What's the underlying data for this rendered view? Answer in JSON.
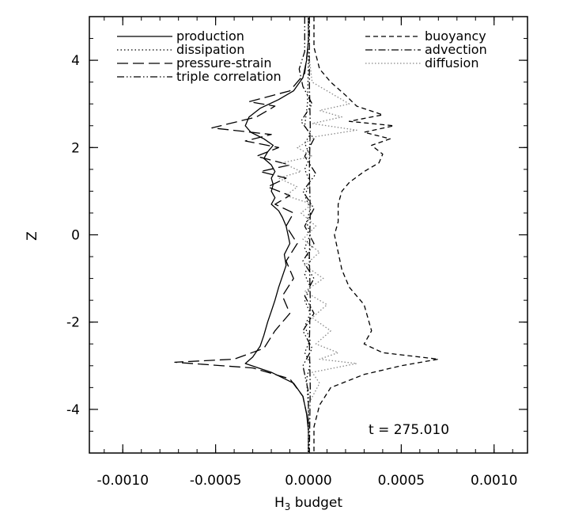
{
  "chart_data": {
    "type": "line",
    "title": "",
    "xlabel": "H",
    "xlabel_sub": "3",
    "xlabel_rest": " budget",
    "ylabel": "Z",
    "xlim": [
      -0.00118,
      0.00118
    ],
    "ylim": [
      -5,
      5
    ],
    "xticks": [
      -0.001,
      -0.0005,
      0.0,
      0.0005,
      0.001
    ],
    "xtick_labels": [
      "-0.0010",
      "-0.0005",
      "0.0000",
      "0.0005",
      "0.0010"
    ],
    "yticks": [
      -4,
      -2,
      0,
      2,
      4
    ],
    "ytick_labels": [
      "-4",
      "-2",
      "0",
      "2",
      "4"
    ],
    "grid": false,
    "legend_left": [
      "production",
      "dissipation",
      "pressure-strain",
      "triple correlation"
    ],
    "legend_right": [
      "buoyancy",
      "advection",
      "diffusion"
    ],
    "annotation": "t  =  275.010",
    "series": [
      {
        "name": "production",
        "style": "solid",
        "color": "#000000",
        "points": [
          [
            0,
            5
          ],
          [
            0,
            4.5
          ],
          [
            -1e-05,
            4.0
          ],
          [
            -3e-05,
            3.6
          ],
          [
            -8e-05,
            3.3
          ],
          [
            -0.00016,
            3.1
          ],
          [
            -0.00026,
            2.9
          ],
          [
            -0.00032,
            2.7
          ],
          [
            -0.00034,
            2.5
          ],
          [
            -0.00031,
            2.35
          ],
          [
            -0.00024,
            2.2
          ],
          [
            -0.00019,
            2.05
          ],
          [
            -0.00022,
            1.9
          ],
          [
            -0.00024,
            1.75
          ],
          [
            -0.0002,
            1.6
          ],
          [
            -0.00018,
            1.45
          ],
          [
            -0.0002,
            1.3
          ],
          [
            -0.00019,
            1.15
          ],
          [
            -0.0002,
            1.0
          ],
          [
            -0.00018,
            0.85
          ],
          [
            -0.0002,
            0.7
          ],
          [
            -0.00016,
            0.55
          ],
          [
            -0.00014,
            0.4
          ],
          [
            -0.00012,
            0.2
          ],
          [
            -0.00011,
            0.0
          ],
          [
            -0.0001,
            -0.2
          ],
          [
            -0.00013,
            -0.45
          ],
          [
            -0.00012,
            -0.7
          ],
          [
            -0.00014,
            -0.95
          ],
          [
            -0.00016,
            -1.2
          ],
          [
            -0.00018,
            -1.5
          ],
          [
            -0.0002,
            -1.75
          ],
          [
            -0.00022,
            -2.0
          ],
          [
            -0.00024,
            -2.3
          ],
          [
            -0.00026,
            -2.55
          ],
          [
            -0.0003,
            -2.8
          ],
          [
            -0.00034,
            -2.95
          ],
          [
            -0.0002,
            -3.15
          ],
          [
            -8e-05,
            -3.4
          ],
          [
            -3e-05,
            -3.7
          ],
          [
            -1e-05,
            -4.1
          ],
          [
            0,
            -4.5
          ],
          [
            0,
            -5
          ]
        ]
      },
      {
        "name": "dissipation",
        "style": "dotted",
        "color": "#000000",
        "points": [
          [
            0,
            5
          ],
          [
            0,
            4.0
          ],
          [
            -5e-06,
            3.0
          ],
          [
            -2e-05,
            2.5
          ],
          [
            1e-05,
            2.3
          ],
          [
            -2e-05,
            2.1
          ],
          [
            1e-05,
            1.8
          ],
          [
            -2e-05,
            1.5
          ],
          [
            1e-05,
            1.2
          ],
          [
            -2e-05,
            0.9
          ],
          [
            1e-05,
            0.6
          ],
          [
            -1e-05,
            0.3
          ],
          [
            1e-05,
            0.0
          ],
          [
            -2e-05,
            -0.3
          ],
          [
            1e-05,
            -0.6
          ],
          [
            -2e-05,
            -0.9
          ],
          [
            1e-05,
            -1.2
          ],
          [
            -2e-05,
            -1.5
          ],
          [
            1e-05,
            -1.8
          ],
          [
            -2e-05,
            -2.1
          ],
          [
            1e-05,
            -2.4
          ],
          [
            -2e-05,
            -2.7
          ],
          [
            1e-05,
            -2.95
          ],
          [
            -1e-05,
            -3.3
          ],
          [
            0,
            -4.0
          ],
          [
            0,
            -5
          ]
        ]
      },
      {
        "name": "pressure-strain",
        "style": "longdash",
        "color": "#000000",
        "points": [
          [
            0,
            5
          ],
          [
            0,
            4.4
          ],
          [
            -2e-05,
            3.7
          ],
          [
            -0.0001,
            3.3
          ],
          [
            -0.00032,
            3.05
          ],
          [
            -0.00018,
            2.95
          ],
          [
            -0.00028,
            2.7
          ],
          [
            -0.00052,
            2.45
          ],
          [
            -0.0002,
            2.3
          ],
          [
            -0.00034,
            2.15
          ],
          [
            -0.00016,
            2.0
          ],
          [
            -0.00028,
            1.8
          ],
          [
            -0.0001,
            1.6
          ],
          [
            -0.00026,
            1.45
          ],
          [
            -0.00012,
            1.3
          ],
          [
            -0.00022,
            1.1
          ],
          [
            -0.0001,
            0.9
          ],
          [
            -0.00018,
            0.7
          ],
          [
            -8e-05,
            0.5
          ],
          [
            -0.00012,
            0.2
          ],
          [
            -6e-05,
            -0.2
          ],
          [
            -0.00012,
            -0.6
          ],
          [
            -8e-05,
            -1.0
          ],
          [
            -0.00014,
            -1.4
          ],
          [
            -0.0001,
            -1.8
          ],
          [
            -0.00018,
            -2.2
          ],
          [
            -0.00024,
            -2.6
          ],
          [
            -0.0004,
            -2.85
          ],
          [
            -0.00072,
            -2.92
          ],
          [
            -0.0003,
            -3.05
          ],
          [
            -0.0001,
            -3.3
          ],
          [
            -3e-05,
            -3.7
          ],
          [
            0,
            -4.3
          ],
          [
            0,
            -5
          ]
        ]
      },
      {
        "name": "triple correlation",
        "style": "dashdotdot",
        "color": "#000000",
        "points": [
          [
            -2e-05,
            5
          ],
          [
            -2e-05,
            4.2
          ],
          [
            -5e-05,
            3.8
          ],
          [
            -3e-05,
            3.4
          ],
          [
            2e-05,
            3.0
          ],
          [
            -4e-05,
            2.6
          ],
          [
            3e-05,
            2.2
          ],
          [
            -2e-05,
            1.8
          ],
          [
            4e-05,
            1.4
          ],
          [
            -3e-05,
            1.0
          ],
          [
            3e-05,
            0.6
          ],
          [
            -2e-05,
            0.2
          ],
          [
            3e-05,
            -0.2
          ],
          [
            -3e-05,
            -0.6
          ],
          [
            3e-05,
            -1.0
          ],
          [
            -2e-05,
            -1.4
          ],
          [
            3e-05,
            -1.8
          ],
          [
            -3e-05,
            -2.2
          ],
          [
            2e-05,
            -2.6
          ],
          [
            -3e-05,
            -3.0
          ],
          [
            0,
            -3.6
          ],
          [
            0,
            -5
          ]
        ]
      },
      {
        "name": "buoyancy",
        "style": "shortdash",
        "color": "#000000",
        "points": [
          [
            3e-05,
            5
          ],
          [
            3e-05,
            4.3
          ],
          [
            6e-05,
            3.8
          ],
          [
            0.00012,
            3.5
          ],
          [
            0.0002,
            3.2
          ],
          [
            0.00026,
            2.95
          ],
          [
            0.0004,
            2.75
          ],
          [
            0.00022,
            2.6
          ],
          [
            0.00046,
            2.5
          ],
          [
            0.0003,
            2.35
          ],
          [
            0.00044,
            2.2
          ],
          [
            0.00034,
            2.05
          ],
          [
            0.0004,
            1.85
          ],
          [
            0.00038,
            1.65
          ],
          [
            0.0003,
            1.45
          ],
          [
            0.00022,
            1.2
          ],
          [
            0.00018,
            1.0
          ],
          [
            0.00016,
            0.7
          ],
          [
            0.00016,
            0.3
          ],
          [
            0.00014,
            0.0
          ],
          [
            0.00016,
            -0.4
          ],
          [
            0.00018,
            -0.8
          ],
          [
            0.00022,
            -1.2
          ],
          [
            0.0003,
            -1.6
          ],
          [
            0.00032,
            -1.9
          ],
          [
            0.00034,
            -2.2
          ],
          [
            0.0003,
            -2.5
          ],
          [
            0.0004,
            -2.7
          ],
          [
            0.0007,
            -2.85
          ],
          [
            0.0005,
            -3.0
          ],
          [
            0.0003,
            -3.2
          ],
          [
            0.00012,
            -3.5
          ],
          [
            6e-05,
            -3.9
          ],
          [
            3e-05,
            -4.4
          ],
          [
            3e-05,
            -5
          ]
        ]
      },
      {
        "name": "advection",
        "style": "dashdot",
        "color": "#000000",
        "points": [
          [
            5e-06,
            5
          ],
          [
            5e-06,
            3.5
          ],
          [
            1e-05,
            2.5
          ],
          [
            5e-06,
            1.5
          ],
          [
            1e-05,
            0.5
          ],
          [
            5e-06,
            -0.5
          ],
          [
            1e-05,
            -1.5
          ],
          [
            5e-06,
            -2.5
          ],
          [
            1e-05,
            -3.5
          ],
          [
            5e-06,
            -5
          ]
        ]
      },
      {
        "name": "diffusion",
        "style": "dotted-gray",
        "color": "#888888",
        "points": [
          [
            0,
            5
          ],
          [
            0,
            4.2
          ],
          [
            2e-05,
            3.5
          ],
          [
            0.00022,
            3.0
          ],
          [
            6e-05,
            2.85
          ],
          [
            0.00018,
            2.7
          ],
          [
            2e-05,
            2.55
          ],
          [
            0.00026,
            2.4
          ],
          [
            4e-05,
            2.25
          ],
          [
            -6e-05,
            2.0
          ],
          [
            2e-05,
            1.8
          ],
          [
            -0.00014,
            1.65
          ],
          [
            -4e-05,
            1.45
          ],
          [
            -0.00016,
            1.3
          ],
          [
            -6e-05,
            1.1
          ],
          [
            -0.00012,
            0.9
          ],
          [
            2e-05,
            0.7
          ],
          [
            -4e-05,
            0.5
          ],
          [
            4e-05,
            0.2
          ],
          [
            -3e-05,
            -0.1
          ],
          [
            6e-05,
            -0.4
          ],
          [
            -2e-05,
            -0.7
          ],
          [
            8e-05,
            -1.0
          ],
          [
            -2e-05,
            -1.3
          ],
          [
            0.0001,
            -1.6
          ],
          [
            2e-05,
            -1.9
          ],
          [
            0.00012,
            -2.2
          ],
          [
            4e-05,
            -2.5
          ],
          [
            0.00016,
            -2.7
          ],
          [
            6e-05,
            -2.85
          ],
          [
            0.00026,
            -2.95
          ],
          [
            2e-05,
            -3.15
          ],
          [
            6e-05,
            -3.4
          ],
          [
            1e-05,
            -3.8
          ],
          [
            0,
            -4.4
          ],
          [
            0,
            -5
          ]
        ]
      }
    ]
  }
}
